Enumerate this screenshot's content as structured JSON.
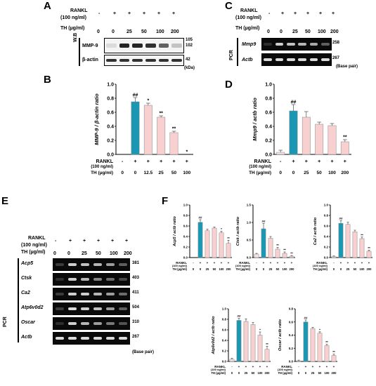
{
  "panels": [
    "A",
    "B",
    "C",
    "D",
    "E",
    "F"
  ],
  "rankl_label": "RANKL",
  "rankl_dose": "(100 ng/ml)",
  "th_label": "TH (µg/ml)",
  "base_pair": "(Base pair)",
  "kda": "(kDa)",
  "rankl_signs": [
    "-",
    "+",
    "+",
    "+",
    "+",
    "+"
  ],
  "th_doses": [
    "0",
    "0",
    "25",
    "50",
    "100",
    "200"
  ],
  "th_doses_b": [
    "0",
    "0",
    "12.5",
    "25",
    "50",
    "100"
  ],
  "panel_a": {
    "side": "W.B",
    "bands": [
      "MMP-9",
      "β-actin"
    ],
    "sizes": [
      "105",
      "102",
      "42"
    ]
  },
  "panel_c": {
    "side": "PCR",
    "bands": [
      "Mmp9",
      "Actb"
    ],
    "sizes": [
      "258",
      "267"
    ]
  },
  "panel_e": {
    "side": "PCR",
    "bands": [
      "Acp5",
      "Ctsk",
      "Ca2",
      "Atp6v0d2",
      "Oscar",
      "Actb"
    ],
    "sizes": [
      "381",
      "403",
      "411",
      "504",
      "310",
      "267"
    ]
  },
  "colors": {
    "control": "#f6e0e0",
    "rankl": "#1a98b3",
    "treated": "#f8d0d0",
    "edge": "#888888"
  },
  "chart_data": [
    {
      "id": "B",
      "type": "bar",
      "ylabel": "MMP-9 / β-actin ratio",
      "ylim": [
        0,
        1.0
      ],
      "yticks": [
        "0.0",
        "0.2",
        "0.4",
        "0.6",
        "0.8",
        "1.0"
      ],
      "categories": [
        "0",
        "0",
        "12.5",
        "25",
        "50",
        "100"
      ],
      "values": [
        0.0,
        0.75,
        0.7,
        0.53,
        0.31,
        0.0
      ],
      "errors": [
        0.0,
        0.06,
        0.03,
        0.02,
        0.02,
        0.0
      ],
      "marks": [
        "",
        "##",
        "*",
        "**",
        "**",
        "*"
      ]
    },
    {
      "id": "D",
      "type": "bar",
      "ylabel": "Mmp9 / actb ratio",
      "ylim": [
        0,
        1.0
      ],
      "yticks": [
        "0.0",
        "0.2",
        "0.4",
        "0.6",
        "0.8",
        "1.0"
      ],
      "categories": [
        "0",
        "0",
        "25",
        "50",
        "100",
        "200"
      ],
      "values": [
        0.03,
        0.62,
        0.53,
        0.43,
        0.41,
        0.18
      ],
      "errors": [
        0.03,
        0.09,
        0.08,
        0.03,
        0.03,
        0.03
      ],
      "marks": [
        "",
        "##",
        "",
        "",
        "",
        "**"
      ]
    },
    {
      "id": "F1",
      "type": "bar",
      "ylabel": "Acp5 / actb ratio",
      "ylim": [
        0,
        1.0
      ],
      "yticks": [
        "0.0",
        "0.2",
        "0.4",
        "0.6",
        "0.8",
        "1.0"
      ],
      "categories": [
        "0",
        "0",
        "25",
        "50",
        "100",
        "200"
      ],
      "values": [
        0.0,
        0.67,
        0.51,
        0.56,
        0.47,
        0.27
      ],
      "errors": [
        0.0,
        0.05,
        0.03,
        0.02,
        0.03,
        0.06
      ],
      "marks": [
        "",
        "##",
        "",
        "",
        "*",
        "**"
      ]
    },
    {
      "id": "F2",
      "type": "bar",
      "ylabel": "Ctsk / actb ratio",
      "ylim": [
        0,
        1.5
      ],
      "yticks": [
        "0.0",
        "0.5",
        "1.0",
        "1.5"
      ],
      "categories": [
        "0",
        "0",
        "25",
        "50",
        "100",
        "200"
      ],
      "values": [
        0.1,
        0.82,
        0.55,
        0.24,
        0.12,
        0.04
      ],
      "errors": [
        0.02,
        0.15,
        0.05,
        0.05,
        0.04,
        0.02
      ],
      "marks": [
        "",
        "##",
        "",
        "**",
        "**",
        "**"
      ]
    },
    {
      "id": "F3",
      "type": "bar",
      "ylabel": "Ca2 / actb ratio",
      "ylim": [
        0,
        1.0
      ],
      "yticks": [
        "0.0",
        "0.2",
        "0.4",
        "0.6",
        "0.8",
        "1.0"
      ],
      "categories": [
        "0",
        "0",
        "25",
        "50",
        "100",
        "200"
      ],
      "values": [
        0.02,
        0.65,
        0.63,
        0.49,
        0.36,
        0.12
      ],
      "errors": [
        0.01,
        0.05,
        0.04,
        0.03,
        0.03,
        0.02
      ],
      "marks": [
        "",
        "##",
        "",
        "",
        "**",
        "**"
      ]
    },
    {
      "id": "F4",
      "type": "bar",
      "ylabel": "Atp6v0d2 / actb ratio",
      "ylim": [
        0,
        1.0
      ],
      "yticks": [
        "0.0",
        "0.2",
        "0.4",
        "0.6",
        "0.8",
        "1.0"
      ],
      "categories": [
        "0",
        "0",
        "25",
        "50",
        "100",
        "200"
      ],
      "values": [
        0.04,
        0.78,
        0.76,
        0.7,
        0.5,
        0.23
      ],
      "errors": [
        0.02,
        0.04,
        0.05,
        0.04,
        0.06,
        0.06
      ],
      "marks": [
        "",
        "##",
        "",
        "",
        "*",
        "**"
      ]
    },
    {
      "id": "F5",
      "type": "bar",
      "ylabel": "Oscar / actb ratio",
      "ylim": [
        0,
        0.8
      ],
      "yticks": [
        "0.0",
        "0.2",
        "0.4",
        "0.6",
        "0.8"
      ],
      "categories": [
        "0",
        "0",
        "25",
        "50",
        "100",
        "200"
      ],
      "values": [
        0.01,
        0.6,
        0.5,
        0.43,
        0.24,
        0.09
      ],
      "errors": [
        0.01,
        0.03,
        0.02,
        0.02,
        0.02,
        0.02
      ],
      "marks": [
        "",
        "##",
        "",
        "*",
        "**",
        "**"
      ]
    }
  ]
}
